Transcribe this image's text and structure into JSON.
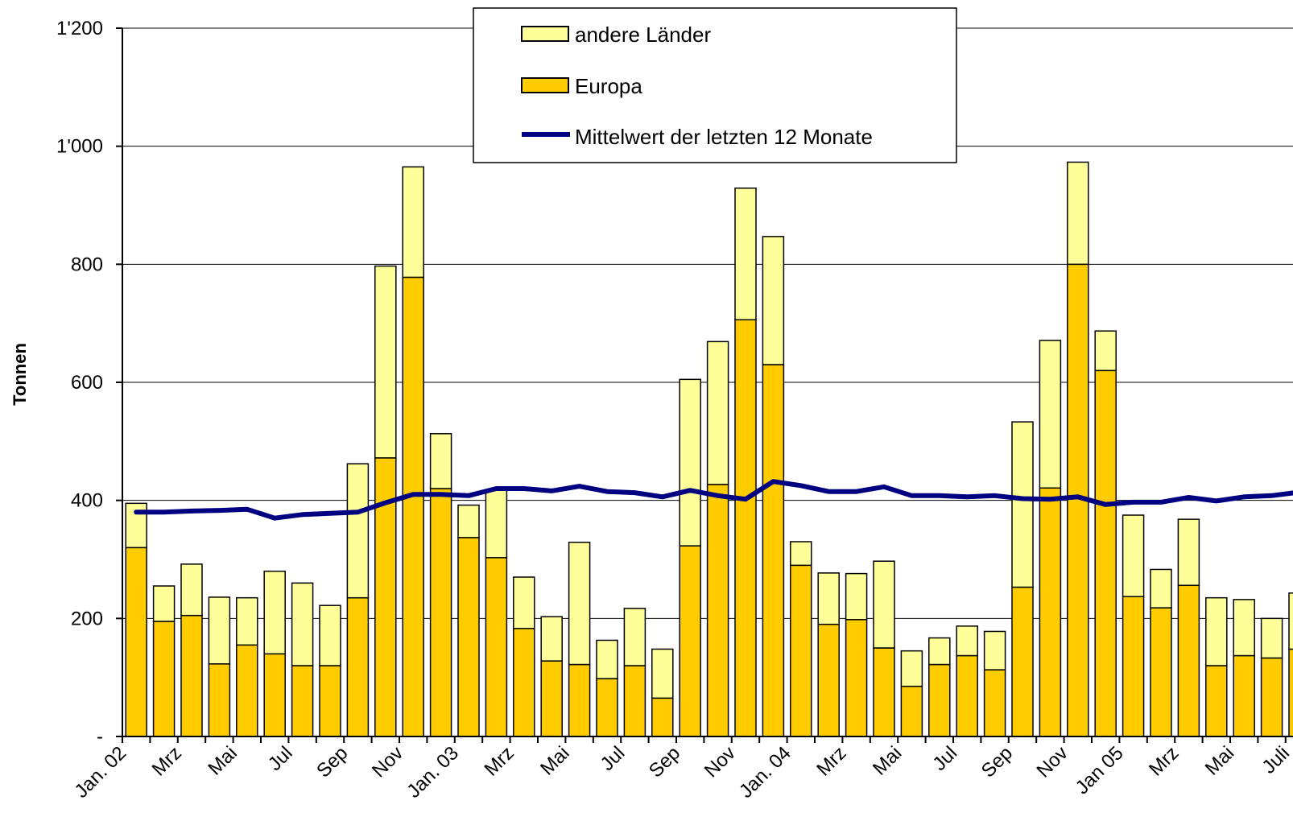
{
  "chart_data": {
    "type": "bar",
    "stacked": true,
    "ylabel": "Tonnen",
    "ylim": [
      0,
      1200
    ],
    "y_ticks": [
      {
        "value": 0,
        "label": "-"
      },
      {
        "value": 200,
        "label": "200"
      },
      {
        "value": 400,
        "label": "400"
      },
      {
        "value": 600,
        "label": "600"
      },
      {
        "value": 800,
        "label": "800"
      },
      {
        "value": 1000,
        "label": "1'000"
      },
      {
        "value": 1200,
        "label": "1'200"
      }
    ],
    "x_tick_labels": [
      "Jan. 02",
      "Mrz",
      "Mai",
      "Jul",
      "Sep",
      "Nov",
      "Jan. 03",
      "Mrz",
      "Mai",
      "Jul",
      "Sep",
      "Nov",
      "Jan. 04",
      "Mrz",
      "Mai",
      "Jul",
      "Sep",
      "Nov",
      "Jan 05",
      "Mrz",
      "Mai",
      "Juli"
    ],
    "grid": true,
    "legend_position": "top-center",
    "colors": {
      "europa": "#ffcc00",
      "andere": "#ffff99",
      "mittelwert": "#000080"
    },
    "series": [
      {
        "name": "Europa",
        "values": [
          320,
          195,
          205,
          123,
          155,
          140,
          120,
          120,
          235,
          472,
          778,
          420,
          337,
          303,
          183,
          128,
          122,
          98,
          120,
          65,
          323,
          427,
          706,
          630,
          290,
          190,
          198,
          150,
          85,
          122,
          137,
          113,
          253,
          421,
          800,
          620,
          237,
          218,
          256,
          120,
          137,
          133,
          148
        ]
      },
      {
        "name": "andere Länder",
        "values": [
          75,
          60,
          87,
          113,
          80,
          140,
          140,
          102,
          227,
          325,
          187,
          93,
          55,
          115,
          87,
          75,
          207,
          65,
          97,
          83,
          282,
          242,
          223,
          217,
          40,
          87,
          78,
          147,
          60,
          45,
          50,
          65,
          280,
          250,
          173,
          67,
          138,
          65,
          112,
          115,
          95,
          67,
          95
        ]
      },
      {
        "name": "Mittelwert der letzten 12 Monate",
        "type": "line",
        "values": [
          380,
          380,
          382,
          383,
          385,
          370,
          376,
          378,
          380,
          396,
          410,
          410,
          408,
          420,
          420,
          416,
          424,
          415,
          413,
          406,
          417,
          408,
          402,
          432,
          425,
          415,
          415,
          423,
          408,
          408,
          406,
          408,
          403,
          402,
          406,
          393,
          397,
          397,
          405,
          399,
          406,
          408,
          414
        ]
      }
    ]
  }
}
